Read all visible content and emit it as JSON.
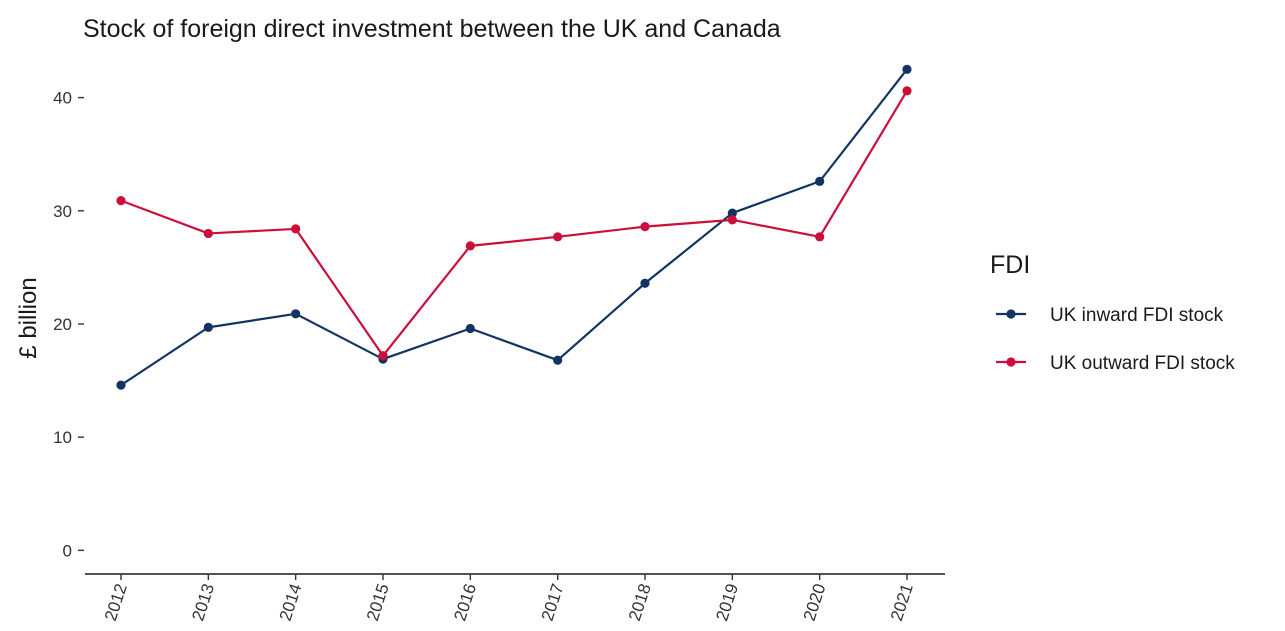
{
  "chart_data": {
    "type": "line",
    "title": "Stock of foreign direct investment between the UK and Canada",
    "xlabel": "",
    "ylabel": "£ billion",
    "categories": [
      "2012",
      "2013",
      "2014",
      "2015",
      "2016",
      "2017",
      "2018",
      "2019",
      "2020",
      "2021"
    ],
    "yticks": [
      0,
      10,
      20,
      30,
      40
    ],
    "ylim": [
      -2,
      43.5
    ],
    "grid": false,
    "legend": {
      "title": "FDI",
      "placement": "right"
    },
    "series": [
      {
        "name": "UK inward FDI stock",
        "color": "#133463",
        "values": [
          14.6,
          19.7,
          20.9,
          16.9,
          19.6,
          16.8,
          23.6,
          29.8,
          32.6,
          42.5
        ]
      },
      {
        "name": "UK outward FDI stock",
        "color": "#CC0F3A",
        "values": [
          30.9,
          28.0,
          28.4,
          17.2,
          26.9,
          27.7,
          28.6,
          29.2,
          27.7,
          40.6
        ]
      }
    ]
  }
}
